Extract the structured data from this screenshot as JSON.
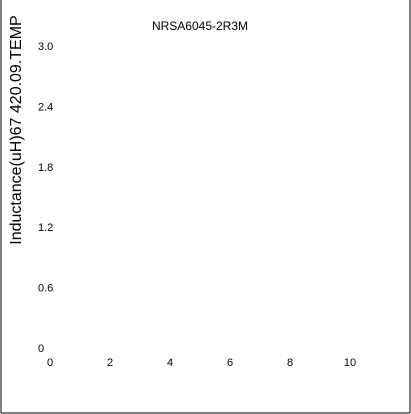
{
  "chart_data": {
    "type": "line",
    "title": "NRSA6045-2R3M",
    "ylabel": "Inductance(uH)67 420.09.TEMP",
    "xlabel": "",
    "x_ticks": [
      "0",
      "2",
      "4",
      "6",
      "8",
      "10"
    ],
    "y_ticks": [
      "0",
      "0.6",
      "1.2",
      "1.8",
      "2.4",
      "3.0"
    ],
    "xlim": [
      0,
      10
    ],
    "ylim": [
      0,
      3.0
    ],
    "grid": false,
    "legend": "none",
    "series": []
  },
  "colors": {
    "frame": "#000000",
    "text": "#000000",
    "background": "#ffffff"
  }
}
